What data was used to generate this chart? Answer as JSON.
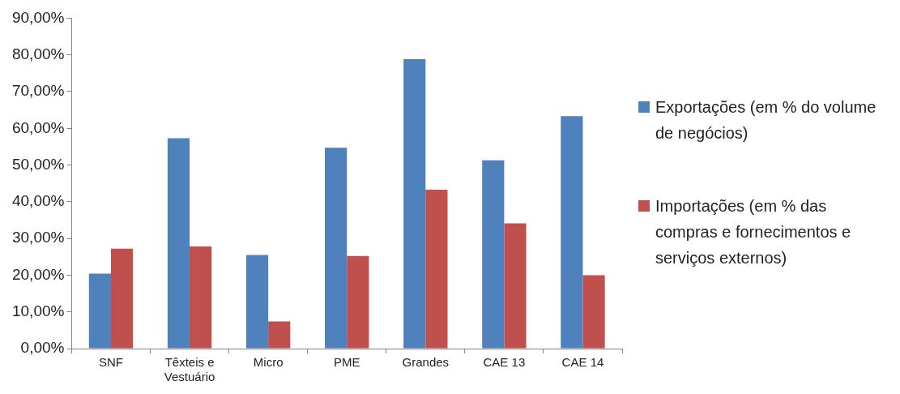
{
  "chart_data": {
    "type": "bar",
    "categories": [
      "SNF",
      "Têxteis e Vestuário",
      "Micro",
      "PME",
      "Grandes",
      "CAE 13",
      "CAE 14"
    ],
    "series": [
      {
        "name": "Exportações (em % do volume de negócios)",
        "color": "#4f81bd",
        "values": [
          20.4,
          57.3,
          25.5,
          54.7,
          78.8,
          51.3,
          63.3
        ]
      },
      {
        "name": "Importações (em % das compras e fornecimentos e serviços externos)",
        "color": "#c0504d",
        "values": [
          27.2,
          27.8,
          7.4,
          25.2,
          43.3,
          34.1,
          20.0
        ]
      }
    ],
    "ylim": [
      0,
      90
    ],
    "yticks": [
      {
        "value": 0,
        "label": "0,00%"
      },
      {
        "value": 10,
        "label": "10,00%"
      },
      {
        "value": 20,
        "label": "20,00%"
      },
      {
        "value": 30,
        "label": "30,00%"
      },
      {
        "value": 40,
        "label": "40,00%"
      },
      {
        "value": 50,
        "label": "50,00%"
      },
      {
        "value": 60,
        "label": "60,00%"
      },
      {
        "value": 70,
        "label": "70,00%"
      },
      {
        "value": 80,
        "label": "80,00%"
      },
      {
        "value": 90,
        "label": "90,00%"
      }
    ],
    "grid": false,
    "legend": "right"
  }
}
